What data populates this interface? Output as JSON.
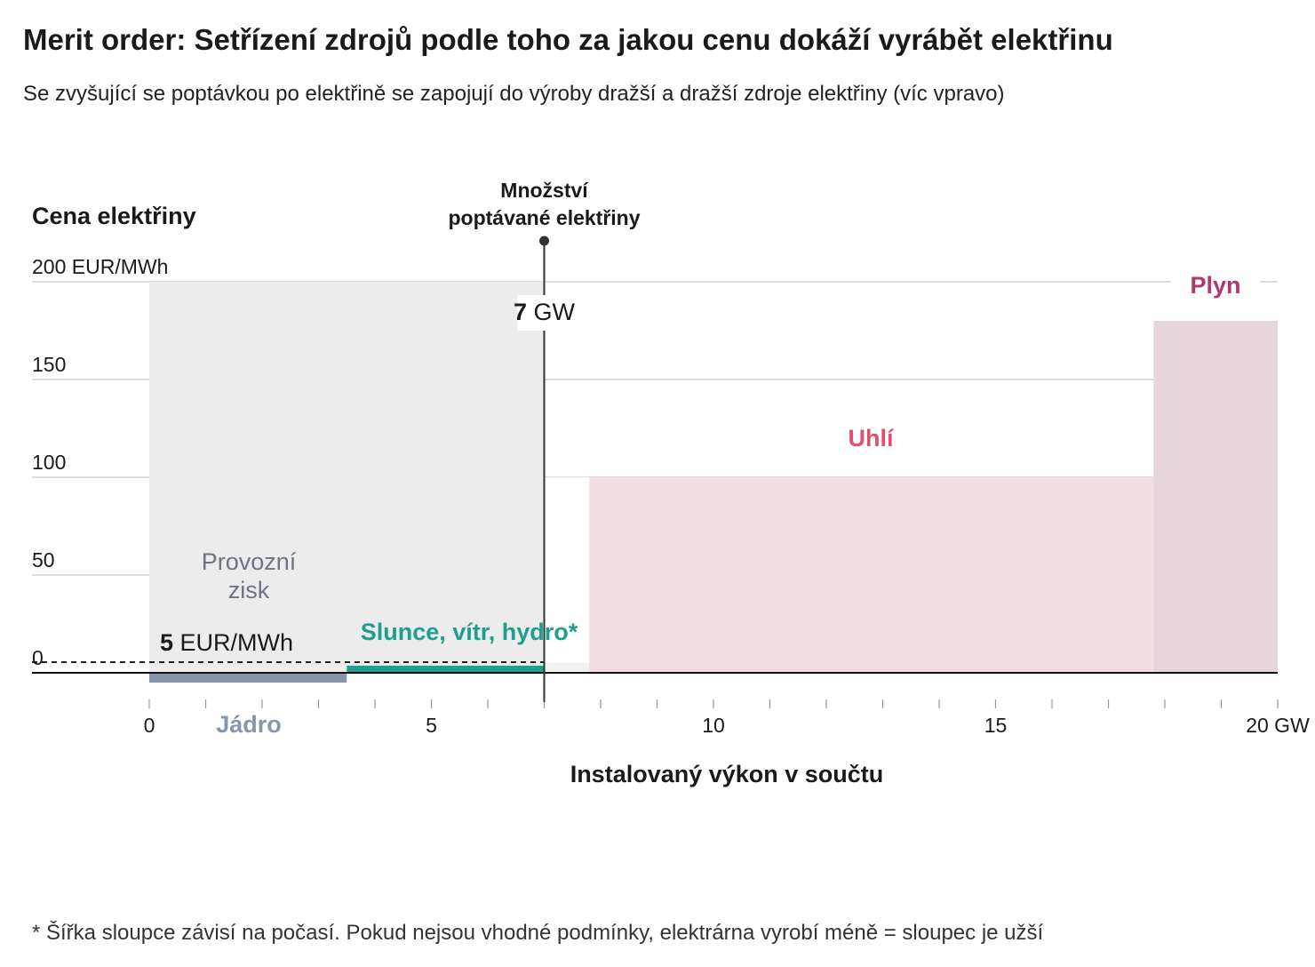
{
  "title": "Merit order: Setřízení zdrojů podle toho za jakou cenu dokáží vyrábět elektřinu",
  "subtitle": "Se zvyšující se poptávkou po elektřině se zapojují do výroby dražší a dražší zdroje elektřiny (víc vpravo)",
  "footnote": "* Šířka sloupce závisí na počasí. Pokud nejsou vhodné podmínky, elektrárna vyrobí méně = sloupec je užší",
  "chart_data": {
    "type": "bar",
    "ylabel": "Cena elektřiny",
    "xlabel": "Instalovaný výkon v součtu",
    "ylim": [
      0,
      200
    ],
    "xlim": [
      0,
      20
    ],
    "y_ticks": [
      {
        "value": 0,
        "label": "0"
      },
      {
        "value": 50,
        "label": "50"
      },
      {
        "value": 100,
        "label": "100"
      },
      {
        "value": 150,
        "label": "150"
      },
      {
        "value": 200,
        "label": "200 EUR/MWh"
      }
    ],
    "x_ticks": [
      {
        "value": 0,
        "label": "0"
      },
      {
        "value": 5,
        "label": "5"
      },
      {
        "value": 10,
        "label": "10"
      },
      {
        "value": 15,
        "label": "15"
      },
      {
        "value": 20,
        "label": "20 GW"
      }
    ],
    "x_minor_step": 1,
    "sources": [
      {
        "name": "Jádro",
        "x_start": 0,
        "x_end": 3.5,
        "price": -5,
        "color": "#8896ab",
        "label_color": "#8896ab"
      },
      {
        "name": "Slunce, vítr, hydro*",
        "x_start": 3.5,
        "x_end": 7,
        "price": 2,
        "color": "#1f9e8e",
        "label_color": "#1f9e8e"
      },
      {
        "name": "Uhlí",
        "x_start": 7.8,
        "x_end": 17.8,
        "price": 100,
        "color": "#f2dde0",
        "label_color": "#e0506e"
      },
      {
        "name": "Plyn",
        "x_start": 17.8,
        "x_end": 20,
        "price": 180,
        "color": "#e8d5dc",
        "label_color": "#b0386e"
      }
    ],
    "demand": {
      "value": 7,
      "unit": "GW",
      "label_line1": "Množství",
      "label_line2": "poptávané elektřiny"
    },
    "marginal_cost": {
      "value": 5,
      "unit": "EUR/MWh"
    },
    "profit_area": {
      "label_line1": "Provozní",
      "label_line2": "zisk",
      "price": 200,
      "x_start": 0,
      "x_end": 7,
      "color": "#ececec"
    }
  }
}
